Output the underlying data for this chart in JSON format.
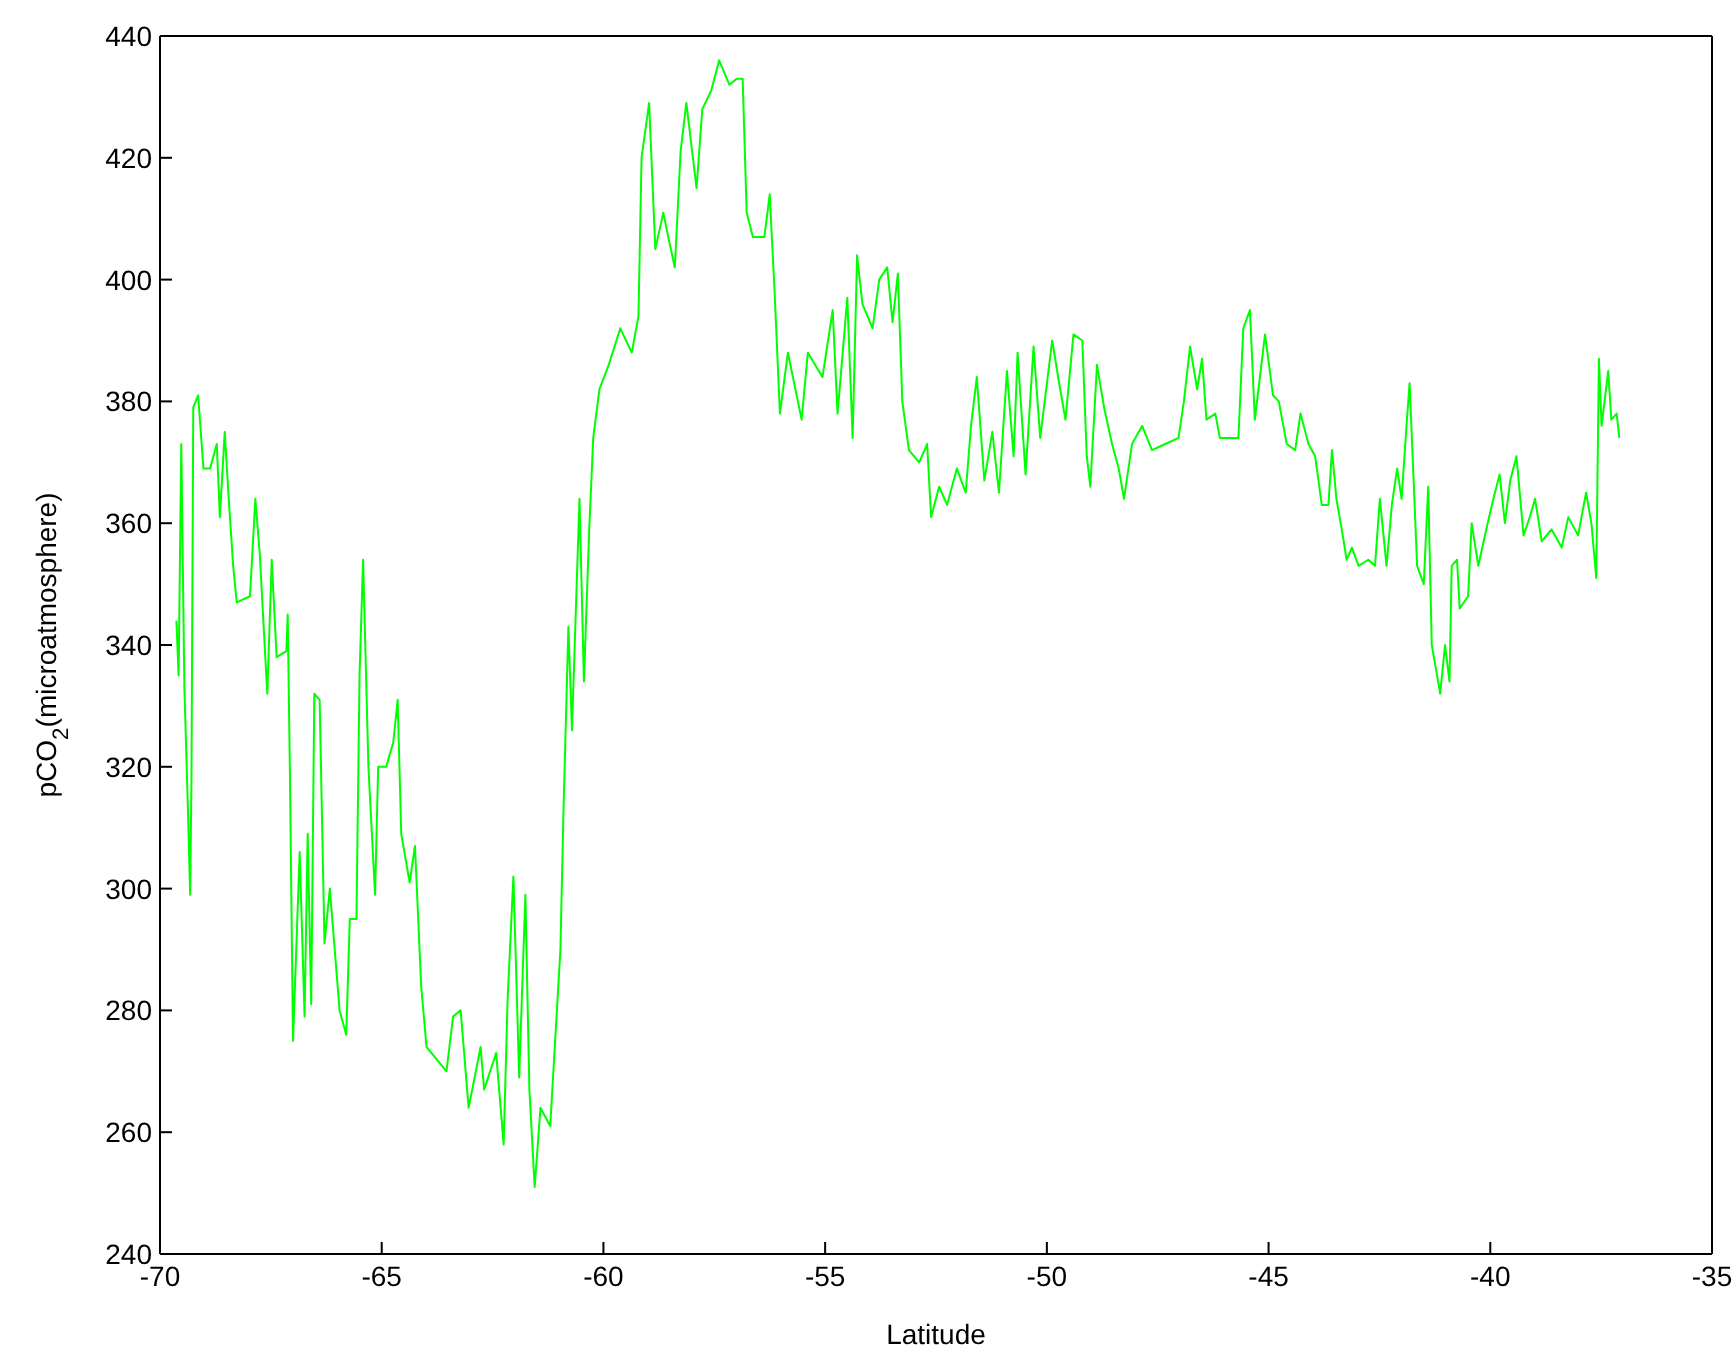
{
  "chart_data": {
    "type": "line",
    "xlabel": "Latitude",
    "ylabel": "pCO$_{2}$(microatmosphere)",
    "xlim": [
      -70,
      -35
    ],
    "xticks": [
      -70,
      -65,
      -60,
      -55,
      -50,
      -45,
      -40,
      -35
    ],
    "ylim": [
      240,
      440
    ],
    "yticks": [
      240,
      260,
      280,
      300,
      320,
      340,
      360,
      380,
      400,
      420,
      440
    ],
    "grid": false,
    "legend": false,
    "marker": "none",
    "line_style": "solid",
    "x": [
      -69.63,
      -69.58,
      -69.52,
      -69.45,
      -69.37,
      -69.32,
      -69.29,
      -69.25,
      -69.14,
      -69.02,
      -68.87,
      -68.72,
      -68.65,
      -68.54,
      -68.45,
      -68.35,
      -68.27,
      -67.97,
      -67.85,
      -67.75,
      -67.64,
      -67.58,
      -67.48,
      -67.37,
      -67.15,
      -67.12,
      -67.07,
      -67.0,
      -66.85,
      -66.74,
      -66.67,
      -66.59,
      -66.52,
      -66.4,
      -66.29,
      -66.17,
      -65.95,
      -65.8,
      -65.72,
      -65.57,
      -65.5,
      -65.42,
      -65.3,
      -65.15,
      -65.08,
      -64.9,
      -64.74,
      -64.64,
      -64.56,
      -64.37,
      -64.25,
      -64.11,
      -63.99,
      -63.54,
      -63.39,
      -63.22,
      -63.04,
      -62.77,
      -62.69,
      -62.42,
      -62.25,
      -62.16,
      -62.03,
      -61.9,
      -61.76,
      -61.67,
      -61.55,
      -61.42,
      -61.2,
      -60.97,
      -60.9,
      -60.79,
      -60.71,
      -60.54,
      -60.44,
      -60.32,
      -60.23,
      -60.09,
      -59.88,
      -59.62,
      -59.36,
      -59.21,
      -59.14,
      -58.97,
      -58.83,
      -58.65,
      -58.51,
      -58.39,
      -58.26,
      -58.13,
      -57.9,
      -57.77,
      -57.57,
      -57.39,
      -57.16,
      -56.99,
      -56.86,
      -56.77,
      -56.63,
      -56.37,
      -56.25,
      -56.14,
      -56.02,
      -55.84,
      -55.53,
      -55.39,
      -55.06,
      -54.83,
      -54.72,
      -54.5,
      -54.38,
      -54.28,
      -54.16,
      -53.93,
      -53.78,
      -53.6,
      -53.48,
      -53.36,
      -53.26,
      -53.11,
      -52.88,
      -52.7,
      -52.61,
      -52.43,
      -52.25,
      -52.03,
      -51.83,
      -51.71,
      -51.58,
      -51.41,
      -51.23,
      -51.08,
      -50.9,
      -50.75,
      -50.66,
      -50.48,
      -50.3,
      -50.15,
      -49.88,
      -49.7,
      -49.58,
      -49.4,
      -49.2,
      -49.1,
      -49.02,
      -48.87,
      -48.71,
      -48.53,
      -48.38,
      -48.26,
      -48.08,
      -47.85,
      -47.63,
      -47.33,
      -47.03,
      -46.91,
      -46.77,
      -46.61,
      -46.5,
      -46.4,
      -46.2,
      -46.1,
      -45.68,
      -45.57,
      -45.42,
      -45.31,
      -45.08,
      -44.9,
      -44.77,
      -44.59,
      -44.4,
      -44.28,
      -44.1,
      -43.95,
      -43.8,
      -43.65,
      -43.57,
      -43.47,
      -43.35,
      -43.24,
      -43.12,
      -42.97,
      -42.75,
      -42.6,
      -42.49,
      -42.34,
      -42.22,
      -42.1,
      -42.0,
      -41.89,
      -41.82,
      -41.74,
      -41.65,
      -41.5,
      -41.4,
      -41.32,
      -41.2,
      -41.13,
      -41.02,
      -40.92,
      -40.87,
      -40.75,
      -40.69,
      -40.5,
      -40.42,
      -40.27,
      -40.09,
      -39.93,
      -39.79,
      -39.67,
      -39.55,
      -39.41,
      -39.25,
      -39.11,
      -38.99,
      -38.84,
      -38.62,
      -38.39,
      -38.24,
      -38.02,
      -37.84,
      -37.72,
      -37.61,
      -37.55,
      -37.49,
      -37.34,
      -37.27,
      -37.15,
      -37.09
    ],
    "series": [
      {
        "color": "#00ff00",
        "values": [
          344,
          335,
          373,
          333,
          313,
          299,
          318,
          379,
          381,
          369,
          369,
          373,
          361,
          375,
          364,
          353,
          347,
          348,
          364,
          355,
          340,
          332,
          354,
          338,
          339,
          345,
          319,
          275,
          306,
          279,
          309,
          281,
          332,
          331,
          291,
          300,
          280,
          276,
          295,
          295,
          335,
          354,
          320,
          299,
          320,
          320,
          324,
          331,
          309,
          301,
          307,
          284,
          274,
          270,
          279,
          280,
          264,
          274,
          267,
          273,
          258,
          282,
          302,
          269,
          299,
          267,
          251,
          264,
          261,
          290,
          313,
          343,
          326,
          364,
          334,
          359,
          374,
          382,
          386,
          392,
          388,
          394,
          420,
          429,
          405,
          411,
          406,
          402,
          421,
          429,
          415,
          428,
          431,
          436,
          432,
          433,
          433,
          411,
          407,
          407,
          414,
          398,
          378,
          388,
          377,
          388,
          384,
          395,
          378,
          397,
          374,
          404,
          396,
          392,
          400,
          402,
          393,
          401,
          380,
          372,
          370,
          373,
          361,
          366,
          363,
          369,
          365,
          376,
          384,
          367,
          375,
          365,
          385,
          371,
          388,
          368,
          389,
          374,
          390,
          382,
          377,
          391,
          390,
          371,
          366,
          386,
          379,
          373,
          369,
          364,
          373,
          376,
          372,
          373,
          374,
          380,
          389,
          382,
          387,
          377,
          378,
          374,
          374,
          392,
          395,
          377,
          391,
          381,
          380,
          373,
          372,
          378,
          373,
          371,
          363,
          363,
          372,
          364,
          359,
          354,
          356,
          353,
          354,
          353,
          364,
          353,
          363,
          369,
          364,
          376,
          383,
          369,
          353,
          350,
          366,
          340,
          335,
          332,
          340,
          334,
          353,
          354,
          346,
          348,
          360,
          353,
          359,
          364,
          368,
          360,
          367,
          371,
          358,
          361,
          364,
          357,
          359,
          356,
          361,
          358,
          365,
          360,
          351,
          387,
          376,
          385,
          377,
          378,
          374
        ]
      }
    ]
  }
}
